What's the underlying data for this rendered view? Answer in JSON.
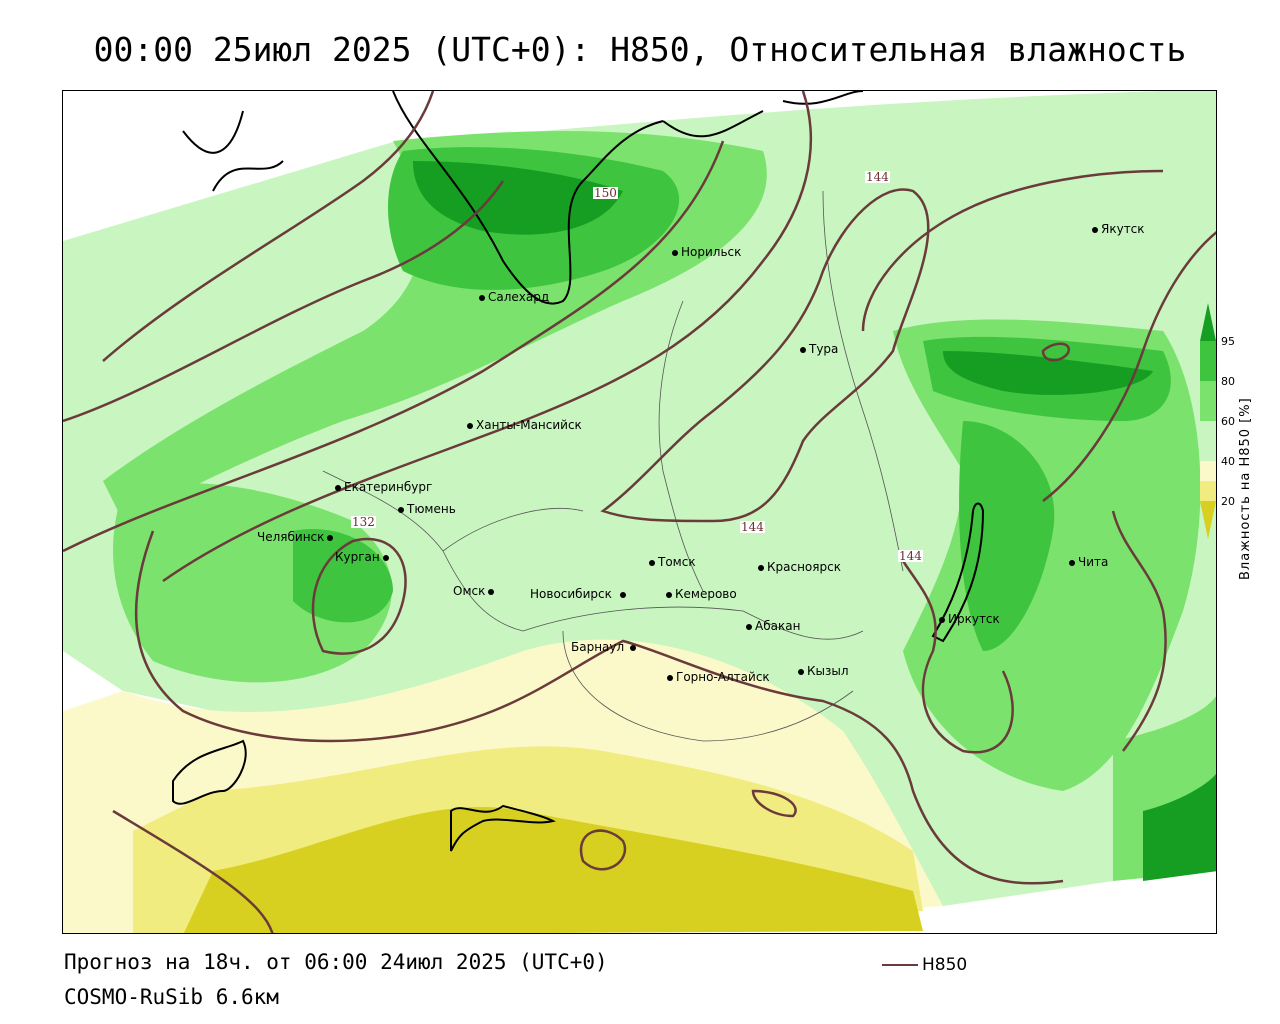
{
  "title": "00:00 25июл 2025 (UTC+0): H850, Относительная влажность",
  "footer": {
    "forecast": "Прогноз на 18ч. от 06:00 24июл 2025 (UTC+0)",
    "model": "COSMO-RuSib 6.6км",
    "line_legend": "H850"
  },
  "legend": {
    "axis_label": "Влажность на H850 [%]",
    "ticks": [
      "95",
      "80",
      "60",
      "40",
      "20"
    ],
    "colors": {
      "very_dry": "#d8d020",
      "dry": "#f0ec80",
      "slightly_dry": "#fbf9c9",
      "neutral": "#ffffff",
      "moist": "#c8f5c0",
      "wet": "#7be26d",
      "very_wet": "#3ec43e",
      "saturated": "#169e22"
    },
    "contour_color": "#6b3b3b"
  },
  "cities": [
    {
      "name": "Якутск"
    },
    {
      "name": "Норильск"
    },
    {
      "name": "Салехард"
    },
    {
      "name": "Тура"
    },
    {
      "name": "Ханты-Мансийск"
    },
    {
      "name": "Екатеринбург"
    },
    {
      "name": "Тюмень"
    },
    {
      "name": "Челябинск"
    },
    {
      "name": "Курган"
    },
    {
      "name": "Омск"
    },
    {
      "name": "Томск"
    },
    {
      "name": "Красноярск"
    },
    {
      "name": "Новосибирск"
    },
    {
      "name": "Кемерово"
    },
    {
      "name": "Абакан"
    },
    {
      "name": "Барнаул"
    },
    {
      "name": "Горно-Алтайск"
    },
    {
      "name": "Кызыл"
    },
    {
      "name": "Иркутск"
    },
    {
      "name": "Чита"
    }
  ],
  "contour_labels": [
    "144",
    "144",
    "144",
    "132",
    "150"
  ]
}
